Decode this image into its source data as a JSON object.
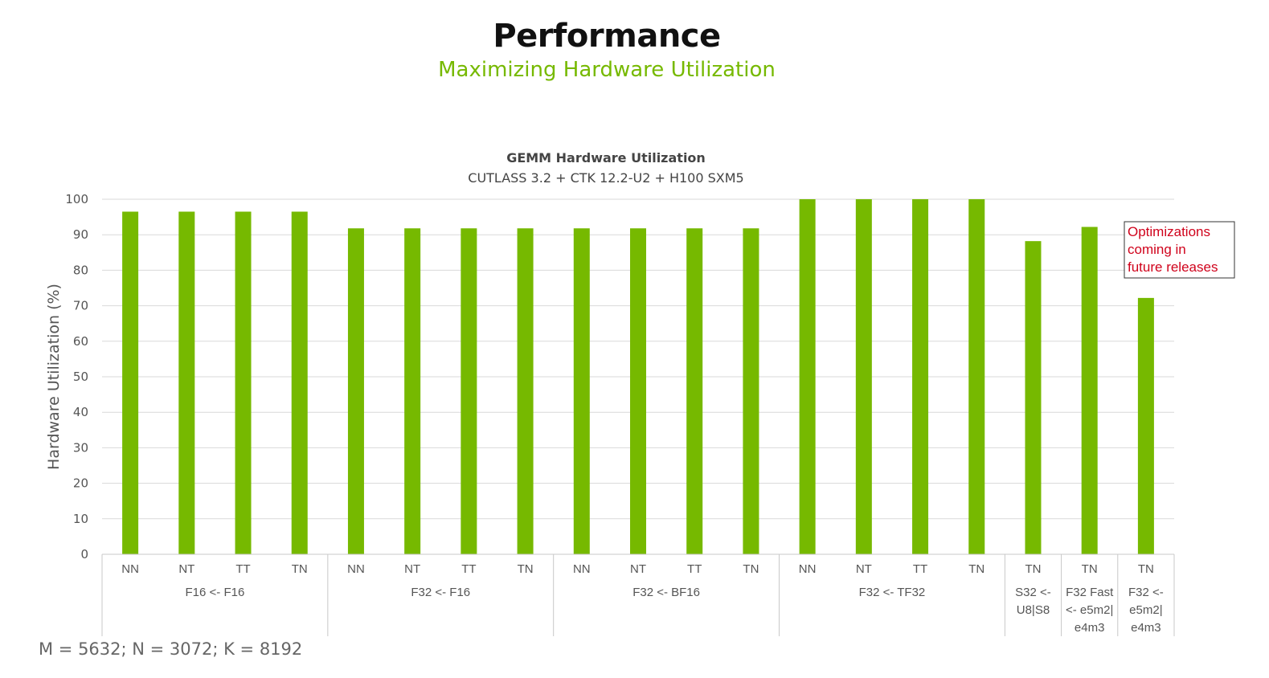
{
  "slide": {
    "title": "Performance",
    "subtitle": "Maximizing Hardware Utilization",
    "footnote": "M = 5632; N = 3072; K = 8192"
  },
  "colors": {
    "bar": "#76b900",
    "grid": "#d9d9d9",
    "annotation": "#d0021b"
  },
  "chart_data": {
    "type": "bar",
    "title": "GEMM Hardware Utilization",
    "subtitle": "CUTLASS 3.2 + CTK 12.2-U2 + H100 SXM5",
    "xlabel": "",
    "ylabel": "Hardware Utilization (%)",
    "ylim": [
      0,
      100
    ],
    "yticks": [
      0,
      10,
      20,
      30,
      40,
      50,
      60,
      70,
      80,
      90,
      100
    ],
    "grid": true,
    "legend": "none",
    "categories": [
      "NN",
      "NT",
      "TT",
      "TN",
      "NN",
      "NT",
      "TT",
      "TN",
      "NN",
      "NT",
      "TT",
      "TN",
      "NN",
      "NT",
      "TT",
      "TN",
      "TN",
      "TN",
      "TN"
    ],
    "values": [
      96.5,
      96.5,
      96.5,
      96.5,
      91.8,
      91.8,
      91.8,
      91.8,
      91.8,
      91.8,
      91.8,
      91.8,
      100,
      100,
      100,
      100,
      88.2,
      92.2,
      72.2
    ],
    "groups": [
      {
        "label": [
          "F16 <- F16"
        ],
        "count": 4
      },
      {
        "label": [
          "F32 <- F16"
        ],
        "count": 4
      },
      {
        "label": [
          "F32 <- BF16"
        ],
        "count": 4
      },
      {
        "label": [
          "F32 <- TF32"
        ],
        "count": 4
      },
      {
        "label": [
          "S32 <-",
          "U8|S8"
        ],
        "count": 1
      },
      {
        "label": [
          "F32 Fast",
          "<- e5m2|",
          "e4m3"
        ],
        "count": 1
      },
      {
        "label": [
          "F32 <-",
          "e5m2|",
          "e4m3"
        ],
        "count": 1
      }
    ],
    "annotations": [
      {
        "text": [
          "Optimizations",
          "coming in",
          "future releases"
        ]
      }
    ]
  }
}
